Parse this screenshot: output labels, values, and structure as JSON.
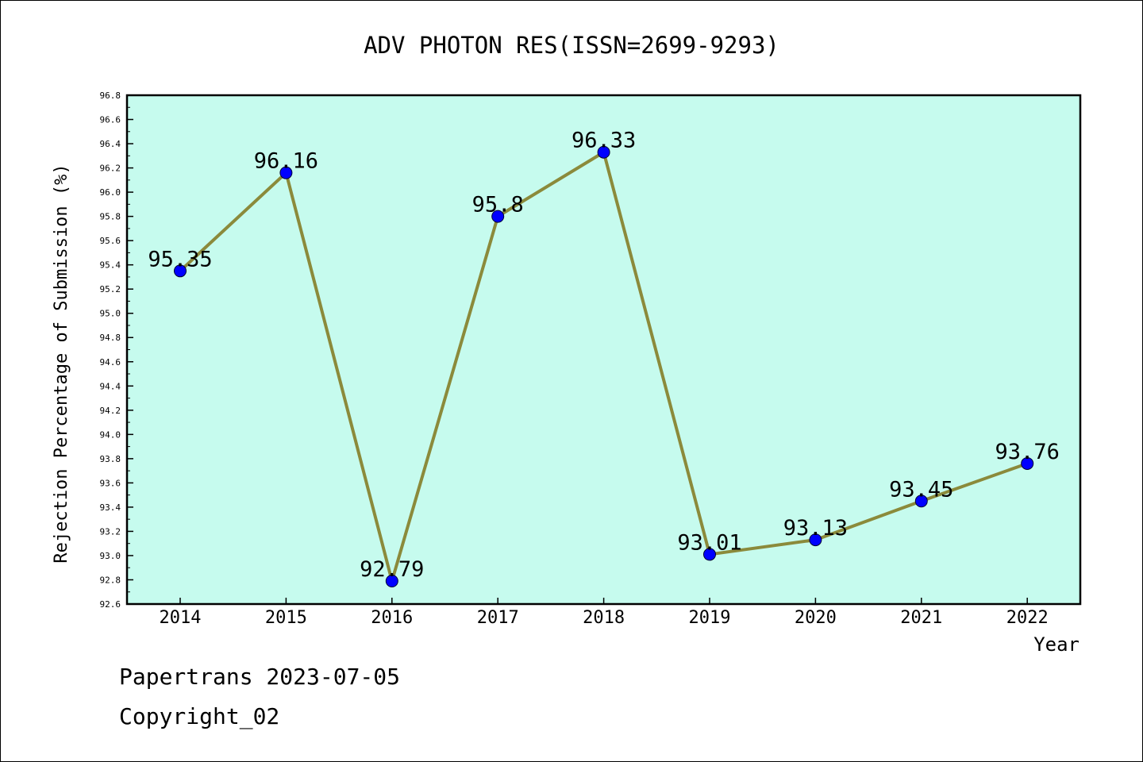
{
  "chart_data": {
    "type": "line",
    "title": "ADV PHOTON RES(ISSN=2699-9293)",
    "xlabel": "Year",
    "ylabel": "Rejection Percentage of Submission (%)",
    "categories": [
      "2014",
      "2015",
      "2016",
      "2017",
      "2018",
      "2019",
      "2020",
      "2021",
      "2022"
    ],
    "values": [
      95.35,
      96.16,
      92.79,
      95.8,
      96.33,
      93.01,
      93.13,
      93.45,
      93.76
    ],
    "data_labels": [
      "95.35",
      "96.16",
      "92.79",
      "95.8",
      "96.33",
      "93.01",
      "93.13",
      "93.45",
      "93.76"
    ],
    "ylim": [
      92.6,
      96.8
    ],
    "y_ticks": [
      "92.6",
      "92.8",
      "93.0",
      "93.2",
      "93.4",
      "93.6",
      "93.8",
      "94.0",
      "94.2",
      "94.4",
      "94.6",
      "94.8",
      "95.0",
      "95.2",
      "95.4",
      "95.6",
      "95.8",
      "96.0",
      "96.2",
      "96.4",
      "96.6",
      "96.8"
    ],
    "grid": false,
    "colors": {
      "plot_background": "#c6fbee",
      "line": "#8b8a3b",
      "marker": "#0000ff"
    }
  },
  "footer": {
    "line1": "Papertrans 2023-07-05",
    "line2": "Copyright_02"
  }
}
